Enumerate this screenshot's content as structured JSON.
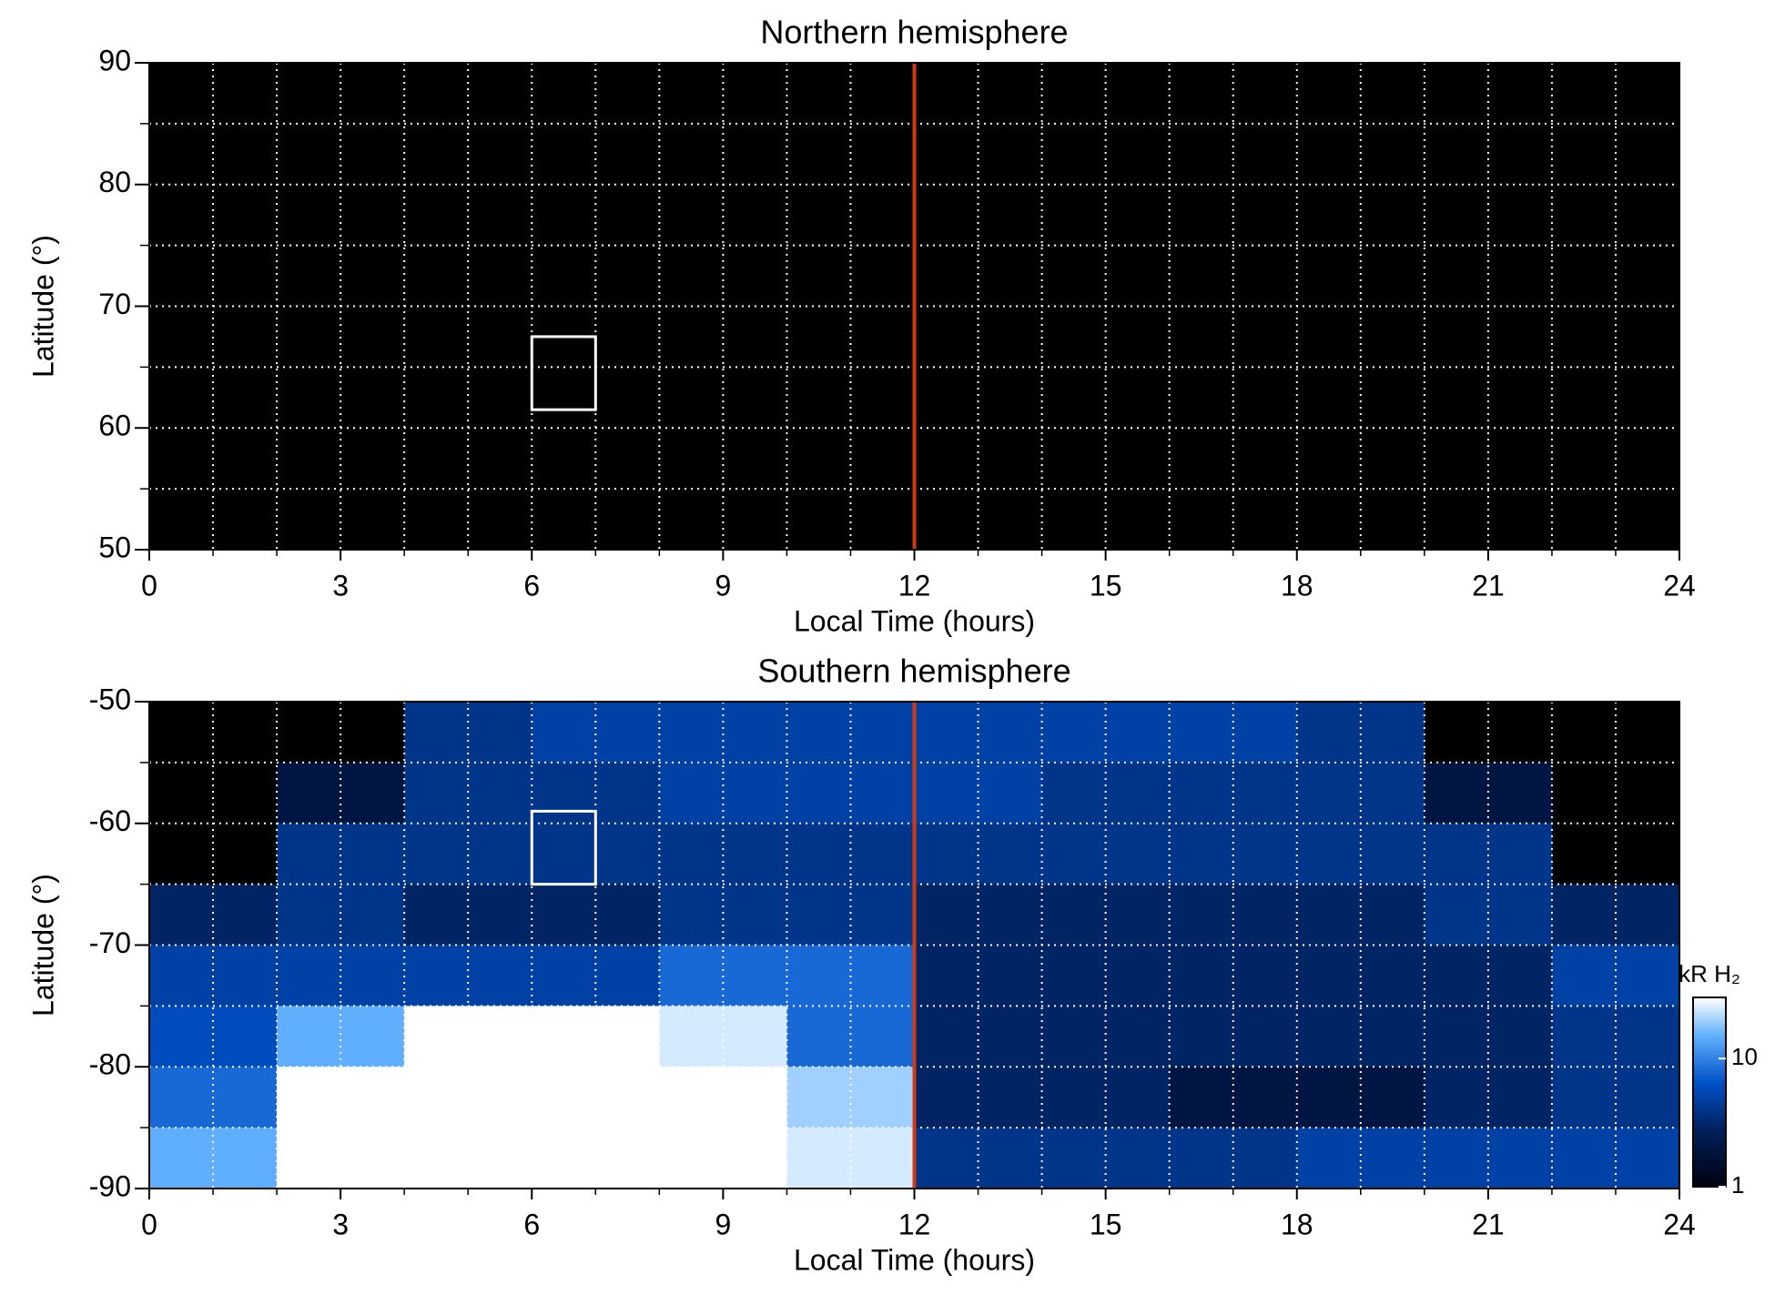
{
  "chart_data": [
    {
      "type": "heatmap",
      "title": "Northern hemisphere",
      "xlabel": "Local Time (hours)",
      "ylabel": "Latitude (°)",
      "xlim": [
        0,
        24
      ],
      "ylim": [
        50,
        90
      ],
      "xticks": [
        0,
        3,
        6,
        9,
        12,
        15,
        18,
        21,
        24
      ],
      "yticks": [
        50,
        60,
        70,
        80,
        90
      ],
      "xminor": [
        1,
        2,
        4,
        5,
        7,
        8,
        10,
        11,
        13,
        14,
        16,
        17,
        19,
        20,
        22,
        23
      ],
      "yminor": [
        55,
        65,
        75,
        85
      ],
      "grid": true,
      "vlines": [
        {
          "x": 12,
          "color": "#d03a10"
        }
      ],
      "boxes": [
        {
          "x": [
            6,
            7
          ],
          "y": [
            61.5,
            67.5
          ],
          "color": "#ffffff"
        }
      ]
    },
    {
      "type": "heatmap",
      "title": "Southern hemisphere",
      "xlabel": "Local Time (hours)",
      "ylabel": "Latitude (°)",
      "xlim": [
        0,
        24
      ],
      "ylim": [
        -90,
        -50
      ],
      "xticks": [
        0,
        3,
        6,
        9,
        12,
        15,
        18,
        21,
        24
      ],
      "yticks": [
        -90,
        -80,
        -70,
        -60,
        -50
      ],
      "xminor": [
        1,
        2,
        4,
        5,
        7,
        8,
        10,
        11,
        13,
        14,
        16,
        17,
        19,
        20,
        22,
        23
      ],
      "yminor": [
        -85,
        -75,
        -65,
        -55
      ],
      "grid": true,
      "xbins": [
        0,
        2,
        4,
        6,
        8,
        10,
        12,
        14,
        16,
        18,
        20,
        22,
        24
      ],
      "ybins": [
        -50,
        -55,
        -60,
        -65,
        -70,
        -75,
        -80,
        -85,
        -90
      ],
      "values": [
        [
          null,
          null,
          4,
          5,
          5,
          5,
          5,
          5,
          5,
          4,
          null,
          null
        ],
        [
          null,
          2,
          4,
          4,
          5,
          5,
          5,
          4,
          4,
          4,
          2,
          null
        ],
        [
          null,
          4,
          4,
          4,
          4,
          4,
          4,
          4,
          4,
          4,
          4,
          null
        ],
        [
          3,
          4,
          3,
          3,
          4,
          4,
          3,
          3,
          3,
          3,
          4,
          3
        ],
        [
          5,
          5,
          5,
          5,
          8,
          8,
          3,
          3,
          3,
          3,
          3,
          5
        ],
        [
          6,
          15,
          30,
          30,
          25,
          8,
          3,
          3,
          3,
          3,
          3,
          4
        ],
        [
          8,
          30,
          30,
          30,
          30,
          20,
          3,
          3,
          2,
          2,
          3,
          4
        ],
        [
          15,
          30,
          30,
          30,
          30,
          25,
          4,
          4,
          4,
          5,
          5,
          5
        ]
      ],
      "vlines": [
        {
          "x": 12,
          "color": "#d03a10"
        }
      ],
      "boxes": [
        {
          "x": [
            6,
            7
          ],
          "y": [
            -59,
            -65
          ],
          "color": "#ffffff"
        }
      ],
      "colorbar": {
        "label": "kR H₂",
        "scale": "log",
        "lim": [
          1,
          30
        ],
        "ticks": [
          1,
          10
        ]
      }
    }
  ]
}
